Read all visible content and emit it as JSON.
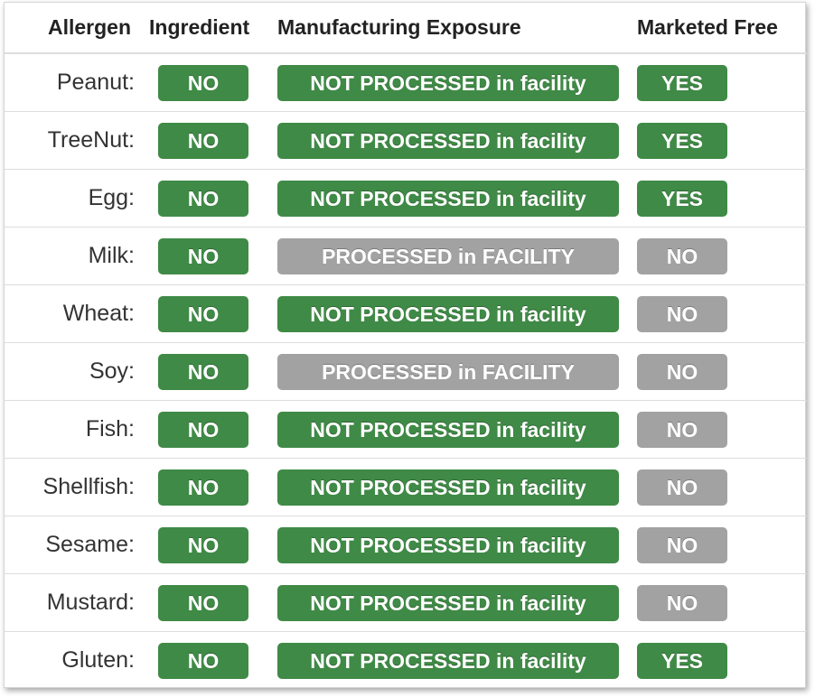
{
  "headers": {
    "allergen": "Allergen",
    "ingredient": "Ingredient",
    "exposure": "Manufacturing Exposure",
    "free": "Marketed Free"
  },
  "colors": {
    "positive": "#3f8a46",
    "negative": "#a2a2a2"
  },
  "rows": [
    {
      "allergen": "Peanut:",
      "ingredient": "NO",
      "ingredient_status": "green",
      "exposure": "NOT PROCESSED in facility",
      "exposure_status": "green",
      "free": "YES",
      "free_status": "green"
    },
    {
      "allergen": "TreeNut:",
      "ingredient": "NO",
      "ingredient_status": "green",
      "exposure": "NOT PROCESSED in facility",
      "exposure_status": "green",
      "free": "YES",
      "free_status": "green"
    },
    {
      "allergen": "Egg:",
      "ingredient": "NO",
      "ingredient_status": "green",
      "exposure": "NOT PROCESSED in facility",
      "exposure_status": "green",
      "free": "YES",
      "free_status": "green"
    },
    {
      "allergen": "Milk:",
      "ingredient": "NO",
      "ingredient_status": "green",
      "exposure": "PROCESSED in FACILITY",
      "exposure_status": "gray",
      "free": "NO",
      "free_status": "gray"
    },
    {
      "allergen": "Wheat:",
      "ingredient": "NO",
      "ingredient_status": "green",
      "exposure": "NOT PROCESSED in facility",
      "exposure_status": "green",
      "free": "NO",
      "free_status": "gray"
    },
    {
      "allergen": "Soy:",
      "ingredient": "NO",
      "ingredient_status": "green",
      "exposure": "PROCESSED in FACILITY",
      "exposure_status": "gray",
      "free": "NO",
      "free_status": "gray"
    },
    {
      "allergen": "Fish:",
      "ingredient": "NO",
      "ingredient_status": "green",
      "exposure": "NOT PROCESSED in facility",
      "exposure_status": "green",
      "free": "NO",
      "free_status": "gray"
    },
    {
      "allergen": "Shellfish:",
      "ingredient": "NO",
      "ingredient_status": "green",
      "exposure": "NOT PROCESSED in facility",
      "exposure_status": "green",
      "free": "NO",
      "free_status": "gray"
    },
    {
      "allergen": "Sesame:",
      "ingredient": "NO",
      "ingredient_status": "green",
      "exposure": "NOT PROCESSED in facility",
      "exposure_status": "green",
      "free": "NO",
      "free_status": "gray"
    },
    {
      "allergen": "Mustard:",
      "ingredient": "NO",
      "ingredient_status": "green",
      "exposure": "NOT PROCESSED in facility",
      "exposure_status": "green",
      "free": "NO",
      "free_status": "gray"
    },
    {
      "allergen": "Gluten:",
      "ingredient": "NO",
      "ingredient_status": "green",
      "exposure": "NOT PROCESSED in facility",
      "exposure_status": "green",
      "free": "YES",
      "free_status": "green"
    }
  ]
}
